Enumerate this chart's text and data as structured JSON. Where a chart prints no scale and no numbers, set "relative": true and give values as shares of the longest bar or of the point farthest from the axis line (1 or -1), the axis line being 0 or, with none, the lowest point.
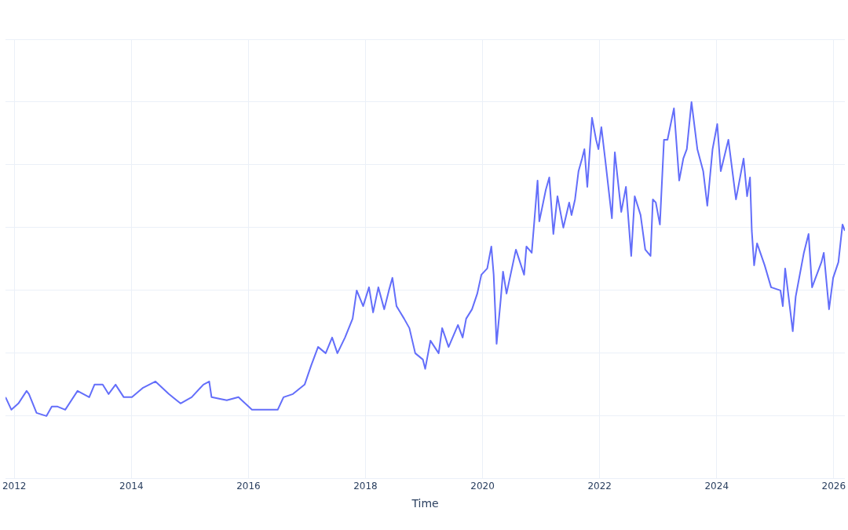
{
  "chart_data": {
    "type": "line",
    "xlabel": "Time",
    "relative": true,
    "grid": true,
    "legend": false,
    "marker": "none",
    "line_style": "solid",
    "xlim": [
      2011.85,
      2026.19
    ],
    "xticks": [
      2012,
      2014,
      2016,
      2018,
      2020,
      2022,
      2024,
      2026
    ],
    "series": [
      {
        "color": "#636efa",
        "x": [
          2011.85,
          2011.95,
          2012.07,
          2012.21,
          2012.25,
          2012.38,
          2012.55,
          2012.64,
          2012.74,
          2012.87,
          2013.08,
          2013.28,
          2013.37,
          2013.51,
          2013.61,
          2013.73,
          2013.87,
          2014.01,
          2014.2,
          2014.41,
          2014.64,
          2014.84,
          2015.03,
          2015.23,
          2015.33,
          2015.37,
          2015.63,
          2015.83,
          2016.06,
          2016.27,
          2016.5,
          2016.6,
          2016.76,
          2016.96,
          2017.07,
          2017.19,
          2017.32,
          2017.43,
          2017.52,
          2017.65,
          2017.78,
          2017.85,
          2017.96,
          2018.06,
          2018.13,
          2018.22,
          2018.32,
          2018.4,
          2018.46,
          2018.53,
          2018.66,
          2018.75,
          2018.85,
          2018.98,
          2019.02,
          2019.11,
          2019.25,
          2019.31,
          2019.42,
          2019.58,
          2019.66,
          2019.72,
          2019.82,
          2019.91,
          2019.98,
          2020.08,
          2020.15,
          2020.19,
          2020.24,
          2020.31,
          2020.35,
          2020.41,
          2020.57,
          2020.71,
          2020.75,
          2020.84,
          2020.88,
          2020.94,
          2020.97,
          2021.08,
          2021.14,
          2021.21,
          2021.28,
          2021.38,
          2021.48,
          2021.52,
          2021.58,
          2021.64,
          2021.7,
          2021.74,
          2021.79,
          2021.87,
          2021.94,
          2021.98,
          2022.03,
          2022.1,
          2022.21,
          2022.26,
          2022.37,
          2022.45,
          2022.54,
          2022.6,
          2022.7,
          2022.78,
          2022.87,
          2022.91,
          2022.96,
          2023.03,
          2023.1,
          2023.16,
          2023.27,
          2023.36,
          2023.43,
          2023.49,
          2023.57,
          2023.67,
          2023.77,
          2023.84,
          2023.93,
          2024.01,
          2024.07,
          2024.2,
          2024.33,
          2024.4,
          2024.46,
          2024.52,
          2024.57,
          2024.6,
          2024.64,
          2024.69,
          2024.82,
          2024.93,
          2025.09,
          2025.13,
          2025.17,
          2025.3,
          2025.35,
          2025.49,
          2025.57,
          2025.63,
          2025.79,
          2025.83,
          2025.92,
          2025.99,
          2026.08,
          2026.15,
          2026.19
        ],
        "values": [
          0.06,
          0.02,
          0.04,
          0.08,
          0.07,
          0.01,
          0,
          0.03,
          0.03,
          0.02,
          0.08,
          0.06,
          0.1,
          0.1,
          0.07,
          0.1,
          0.06,
          0.06,
          0.09,
          0.11,
          0.07,
          0.04,
          0.06,
          0.1,
          0.11,
          0.06,
          0.05,
          0.06,
          0.02,
          0.02,
          0.02,
          0.06,
          0.07,
          0.1,
          0.16,
          0.22,
          0.2,
          0.25,
          0.2,
          0.25,
          0.31,
          0.4,
          0.35,
          0.41,
          0.33,
          0.41,
          0.34,
          0.4,
          0.44,
          0.35,
          0.31,
          0.28,
          0.2,
          0.18,
          0.15,
          0.24,
          0.2,
          0.28,
          0.22,
          0.29,
          0.25,
          0.31,
          0.34,
          0.39,
          0.45,
          0.47,
          0.54,
          0.45,
          0.23,
          0.37,
          0.46,
          0.39,
          0.53,
          0.45,
          0.54,
          0.52,
          0.61,
          0.75,
          0.62,
          0.72,
          0.76,
          0.58,
          0.7,
          0.6,
          0.68,
          0.64,
          0.69,
          0.78,
          0.82,
          0.85,
          0.73,
          0.95,
          0.88,
          0.85,
          0.92,
          0.81,
          0.63,
          0.84,
          0.65,
          0.73,
          0.51,
          0.7,
          0.64,
          0.53,
          0.51,
          0.69,
          0.68,
          0.61,
          0.88,
          0.88,
          0.98,
          0.75,
          0.82,
          0.85,
          1,
          0.85,
          0.78,
          0.67,
          0.85,
          0.93,
          0.78,
          0.88,
          0.69,
          0.76,
          0.82,
          0.7,
          0.76,
          0.59,
          0.48,
          0.55,
          0.48,
          0.41,
          0.4,
          0.35,
          0.47,
          0.27,
          0.38,
          0.52,
          0.58,
          0.41,
          0.49,
          0.52,
          0.34,
          0.44,
          0.49,
          0.61,
          0.59
        ]
      }
    ]
  }
}
